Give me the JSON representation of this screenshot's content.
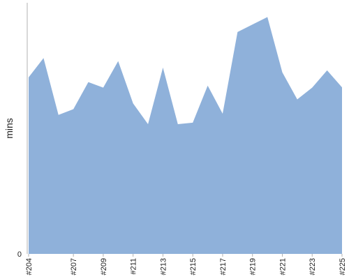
{
  "chart_data": {
    "type": "area",
    "title": "",
    "xlabel": "",
    "ylabel": "mins",
    "x": [
      "#204",
      "#205",
      "#206",
      "#207",
      "#208",
      "#209",
      "#210",
      "#211",
      "#212",
      "#213",
      "#214",
      "#215",
      "#216",
      "#217",
      "#218",
      "#219",
      "#220",
      "#221",
      "#222",
      "#223",
      "#224",
      "#225"
    ],
    "x_tick_labels_shown": [
      "#204",
      "#207",
      "#209",
      "#211",
      "#213",
      "#215",
      "#217",
      "#219",
      "#221",
      "#223",
      "#225"
    ],
    "series": [
      {
        "values": [
          70.5,
          78.2,
          55.5,
          57.8,
          68.6,
          66.4,
          77.0,
          60.1,
          51.8,
          74.4,
          51.8,
          52.4,
          67.2,
          56.0,
          88.6,
          91.6,
          94.6,
          72.5,
          61.7,
          66.4,
          73.3,
          66.5
        ],
        "color": "#8fb1da"
      }
    ],
    "y_tick_labels": [
      "0"
    ],
    "ylim": [
      0,
      100
    ],
    "grid": false,
    "legend": "none"
  }
}
